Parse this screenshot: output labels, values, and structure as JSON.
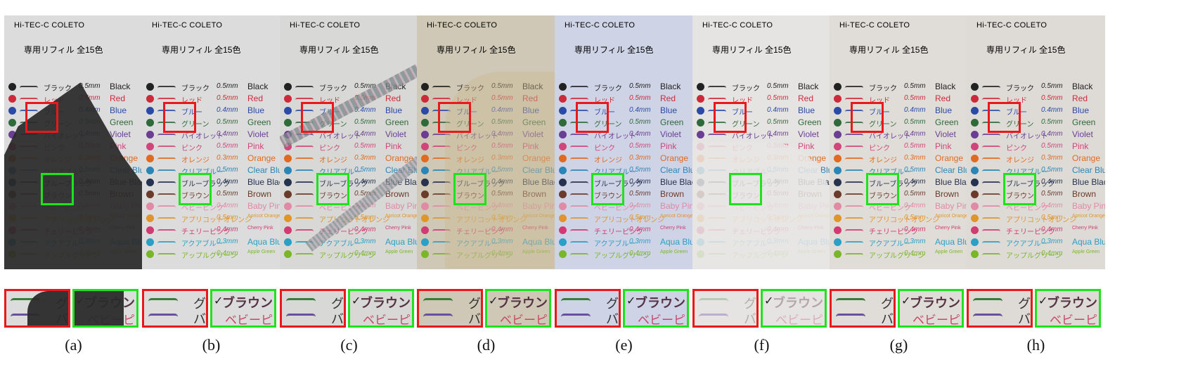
{
  "document": {
    "header_line1": "Hi-TEC-C   COLETO",
    "header_line2": "専用リフィル 全15色",
    "rows": [
      {
        "jp": "ブラック",
        "size": "0.5mm",
        "en": "Black",
        "color": "#222222"
      },
      {
        "jp": "レッド",
        "size": "0.5mm",
        "en": "Red",
        "color": "#cc2a3a"
      },
      {
        "jp": "ブルー",
        "size": "0.4mm",
        "en": "Blue",
        "color": "#2a4aa6"
      },
      {
        "jp": "グリーン",
        "size": "0.5mm",
        "en": "Green",
        "color": "#2f6a3a"
      },
      {
        "jp": "バイオレット",
        "size": "0.4mm",
        "en": "Violet",
        "color": "#6a3f92"
      },
      {
        "jp": "ピンク",
        "size": "0.5mm",
        "en": "Pink",
        "color": "#d0467a"
      },
      {
        "jp": "オレンジ",
        "size": "0.3mm",
        "en": "Orange",
        "color": "#e06a22"
      },
      {
        "jp": "クリアブルー",
        "size": "0.5mm",
        "en": "Clear Blue",
        "color": "#2a86b6"
      },
      {
        "jp": "ブルーブラック",
        "size": "0.4mm",
        "en": "Blue Black",
        "color": "#26324e"
      },
      {
        "jp": "ブラウン",
        "size": "0.5mm",
        "en": "Brown",
        "color": "#6a3a2a"
      },
      {
        "jp": "ベビーピンク",
        "size": "0.4mm",
        "en": "Baby Pink",
        "color": "#e08aa6"
      },
      {
        "jp": "アプリコットオレンジ",
        "size": "0.5mm",
        "en": "Apricot Orange",
        "color": "#e0952a"
      },
      {
        "jp": "チェリーピンク",
        "size": "0.4mm",
        "en": "Cherry Pink",
        "color": "#d23a72"
      },
      {
        "jp": "アクアブルー",
        "size": "0.3mm",
        "en": "Aqua Blue",
        "color": "#2aa0c6"
      },
      {
        "jp": "アップルグリーン",
        "size": "0.4mm",
        "en": "Apple Green",
        "color": "#7ab62a"
      }
    ]
  },
  "crop_text": {
    "red_glyph1": "グ",
    "red_glyph2": "バ",
    "green_line1": "ブラウン",
    "green_line2": "ベビーピ"
  },
  "panels": [
    {
      "label": "(a)",
      "bg": "#dcdcdc",
      "tint": "none"
    },
    {
      "label": "(b)",
      "bg": "#dcdcdc",
      "tint": "none"
    },
    {
      "label": "(c)",
      "bg": "#d8d8d6",
      "tint": "none"
    },
    {
      "label": "(d)",
      "bg": "#cfc8b6",
      "tint": "none"
    },
    {
      "label": "(e)",
      "bg": "#cfd3e6",
      "tint": "none"
    },
    {
      "label": "(f)",
      "bg": "#e6e4e2",
      "tint": "none"
    },
    {
      "label": "(g)",
      "bg": "#e0ddd8",
      "tint": "none"
    },
    {
      "label": "(h)",
      "bg": "#dedbd7",
      "tint": "none"
    }
  ]
}
